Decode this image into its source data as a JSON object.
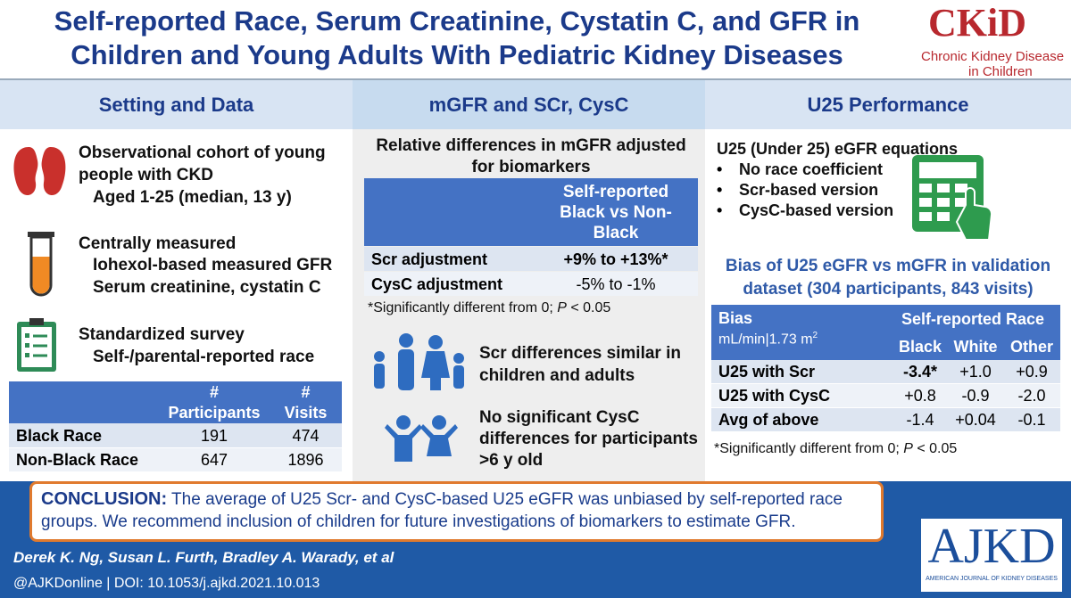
{
  "header": {
    "title_line1": "Self-reported Race, Serum Creatinine, Cystatin C, and GFR in",
    "title_line2": "Children and Young Adults With Pediatric Kidney Diseases",
    "logo": {
      "mark": "CKiD",
      "line1": "Chronic Kidney Disease",
      "line2": "in Children"
    }
  },
  "sections": [
    {
      "heading": "Setting and Data"
    },
    {
      "heading": "mGFR and SCr, CysC"
    },
    {
      "heading": "U25 Performance"
    }
  ],
  "setting": {
    "items": [
      {
        "lines": [
          "Observational cohort of young",
          "people with CKD",
          "Aged 1-25 (median, 13 y)"
        ]
      },
      {
        "lines": [
          "Centrally measured",
          "Iohexol-based measured GFR",
          "Serum creatinine, cystatin C"
        ]
      },
      {
        "lines": [
          "Standardized survey",
          "Self-/parental-reported race"
        ]
      }
    ],
    "table": {
      "columns": [
        {
          "symbol": "#",
          "label": "Participants"
        },
        {
          "symbol": "#",
          "label": "Visits"
        }
      ],
      "rows": [
        [
          "Black Race",
          "191",
          "474"
        ],
        [
          "Non-Black Race",
          "647",
          "1896"
        ]
      ]
    }
  },
  "mgfr": {
    "table_title": "Relative differences in mGFR adjusted for biomarkers",
    "column": "Self-reported Black vs Non-Black",
    "rows": [
      [
        "Scr adjustment",
        "+9% to +13%*"
      ],
      [
        "CysC adjustment",
        "-5% to -1%"
      ]
    ],
    "footnote": {
      "before": "*Significantly different from 0; ",
      "italic": "P",
      "after": " < 0.05"
    },
    "findings": [
      "Scr differences similar in children and adults",
      "No significant CysC differences for participants  >6 y old"
    ]
  },
  "u25": {
    "intro": "U25 (Under 25) eGFR equations",
    "bullets": [
      "No race coefficient",
      "Scr-based version",
      "CysC-based version"
    ],
    "table_title": "Bias of U25 eGFR vs mGFR in validation dataset (304 participants, 843 visits)",
    "table": {
      "corner": "Bias",
      "unit": "mL/min|1.73 m",
      "unit_sup": "2",
      "group": "Self-reported Race",
      "columns": [
        "Black",
        "White",
        "Other"
      ],
      "rows": [
        [
          "U25 with Scr",
          "-3.4*",
          "+1.0",
          "+0.9"
        ],
        [
          "U25 with CysC",
          "+0.8",
          "-0.9",
          "-2.0"
        ],
        [
          "Avg of above",
          "-1.4",
          "+0.04",
          "-0.1"
        ]
      ]
    },
    "footnote": {
      "before": "*Significantly different from 0; ",
      "italic": "P",
      "after": " < 0.05"
    }
  },
  "conclusion": {
    "label": "CONCLUSION:",
    "text": "The average of U25 Scr- and CysC-based U25 eGFR was unbiased by self-reported race groups. We recommend inclusion of children for future investigations of biomarkers to estimate GFR."
  },
  "footer": {
    "authors": "Derek K. Ng, Susan L. Furth, Bradley A. Warady, et al",
    "citation": "@AJKDonline | DOI: 10.1053/j.ajkd.2021.10.013",
    "journal": {
      "mark": "AJKD",
      "name": "AMERICAN JOURNAL OF KIDNEY DISEASES"
    }
  }
}
